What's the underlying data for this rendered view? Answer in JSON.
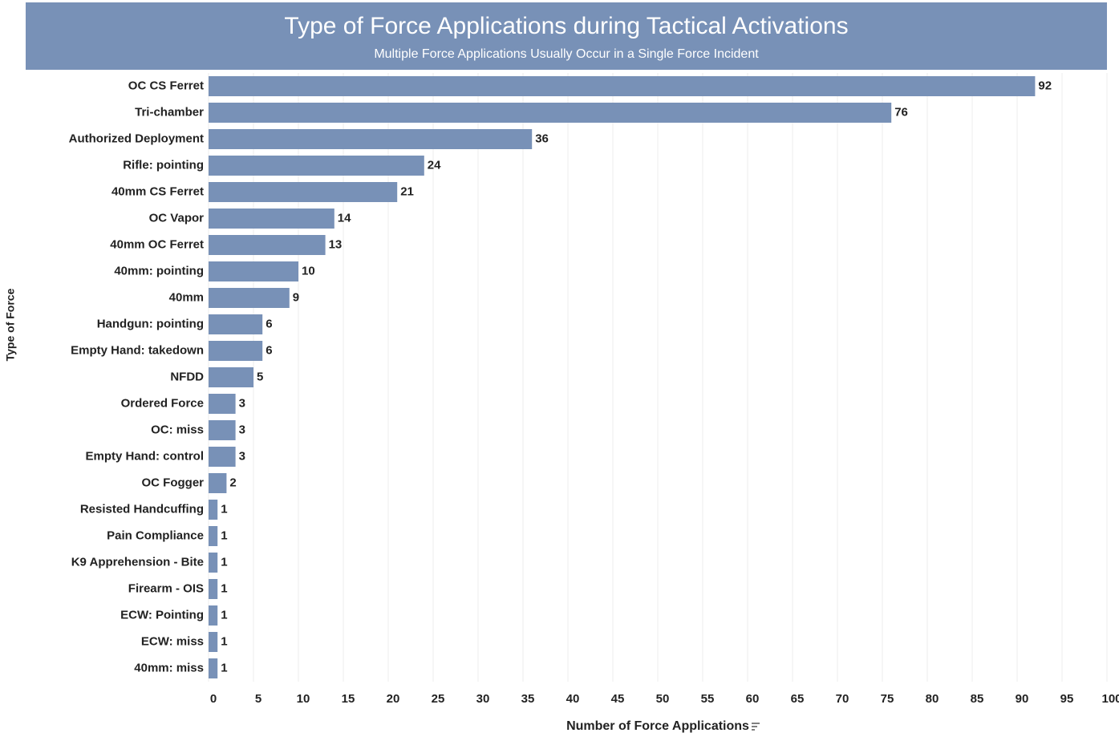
{
  "chart_data": {
    "type": "bar",
    "orientation": "horizontal",
    "title": "Type of Force Applications during Tactical Activations",
    "subtitle": "Multiple Force Applications Usually Occur in a Single Force Incident",
    "x_label": "Number of Force Applications",
    "y_label": "Type of Force",
    "categories": [
      "OC CS Ferret",
      "Tri-chamber",
      "Authorized Deployment",
      "Rifle: pointing",
      "40mm CS Ferret",
      "OC Vapor",
      "40mm OC Ferret",
      "40mm: pointing",
      "40mm",
      "Handgun: pointing",
      "Empty Hand: takedown",
      "NFDD",
      "Ordered Force",
      "OC: miss",
      "Empty Hand: control",
      "OC Fogger",
      "Resisted Handcuffing",
      "Pain Compliance",
      "K9 Apprehension - Bite",
      "Firearm - OIS",
      "ECW: Pointing",
      "ECW: miss",
      "40mm: miss"
    ],
    "values": [
      92,
      76,
      36,
      24,
      21,
      14,
      13,
      10,
      9,
      6,
      6,
      5,
      3,
      3,
      3,
      2,
      1,
      1,
      1,
      1,
      1,
      1,
      1
    ],
    "color": "#7891b7",
    "xlim": [
      0,
      100
    ],
    "xticks": [
      0,
      5,
      10,
      15,
      20,
      25,
      30,
      35,
      40,
      45,
      50,
      55,
      60,
      65,
      70,
      75,
      80,
      85,
      90,
      95,
      100
    ],
    "grid": true
  }
}
